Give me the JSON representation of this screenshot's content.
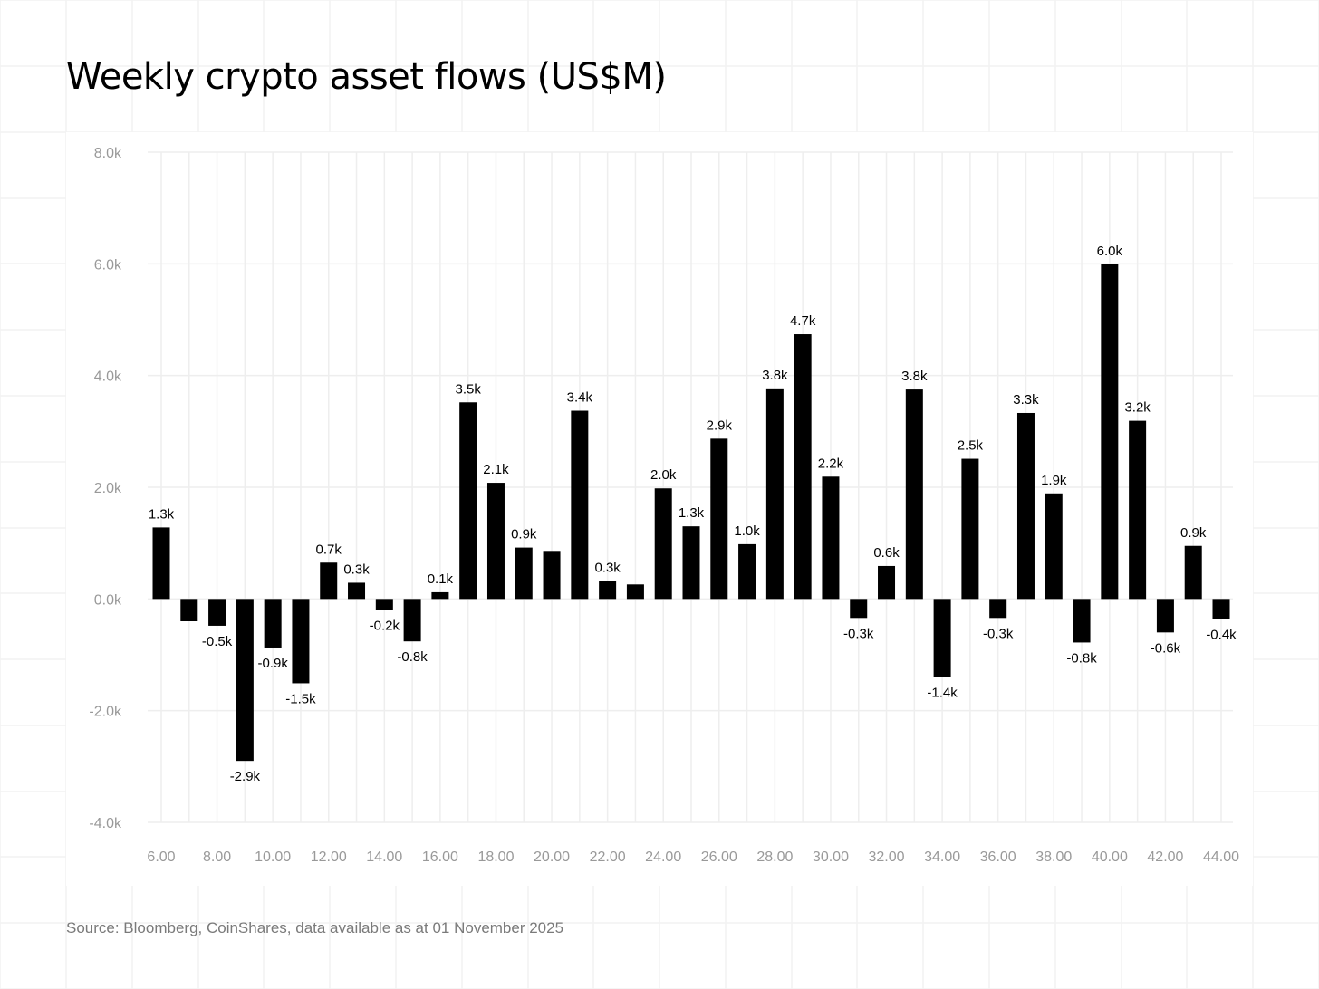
{
  "title": "Weekly crypto asset flows (US$M)",
  "source": "Source: Bloomberg, CoinShares, data available as at 01 November 2025",
  "colors": {
    "bar": "#000000",
    "grid": "#eeeeee",
    "axis_text": "#999999",
    "label_text": "#000000",
    "background_grid": "#f2f2f2"
  },
  "chart_data": {
    "type": "bar",
    "title": "Weekly crypto asset flows (US$M)",
    "xlabel": "",
    "ylabel": "",
    "ylim": [
      -4000,
      8000
    ],
    "yticks": [
      8000,
      6000,
      4000,
      2000,
      0,
      -2000,
      -4000
    ],
    "ytick_labels": [
      "8.0k",
      "6.0k",
      "4.0k",
      "2.0k",
      "0.0k",
      "-2.0k",
      "-4.0k"
    ],
    "grid": true,
    "legend": "none",
    "x_ticks": [
      {
        "at": 6,
        "label": "6.00"
      },
      {
        "at": 8,
        "label": "8.00"
      },
      {
        "at": 10,
        "label": "10.00"
      },
      {
        "at": 12,
        "label": "12.00"
      },
      {
        "at": 14,
        "label": "14.00"
      },
      {
        "at": 16,
        "label": "16.00"
      },
      {
        "at": 18,
        "label": "18.00"
      },
      {
        "at": 20,
        "label": "20.00"
      },
      {
        "at": 22,
        "label": "22.00"
      },
      {
        "at": 24,
        "label": "24.00"
      },
      {
        "at": 26,
        "label": "26.00"
      },
      {
        "at": 28,
        "label": "28.00"
      },
      {
        "at": 30,
        "label": "30.00"
      },
      {
        "at": 32,
        "label": "32.00"
      },
      {
        "at": 34,
        "label": "34.00"
      },
      {
        "at": 36,
        "label": "36.00"
      },
      {
        "at": 38,
        "label": "38.00"
      },
      {
        "at": 40,
        "label": "40.00"
      },
      {
        "at": 42,
        "label": "42.00"
      },
      {
        "at": 44,
        "label": "44.00"
      }
    ],
    "bars": [
      {
        "x": 6,
        "value": 1280,
        "label": "1.3k"
      },
      {
        "x": 7,
        "value": -400,
        "label": ""
      },
      {
        "x": 8,
        "value": -480,
        "label": "-0.5k"
      },
      {
        "x": 9,
        "value": -2900,
        "label": "-2.9k"
      },
      {
        "x": 10,
        "value": -870,
        "label": "-0.9k"
      },
      {
        "x": 11,
        "value": -1510,
        "label": "-1.5k"
      },
      {
        "x": 12,
        "value": 650,
        "label": "0.7k"
      },
      {
        "x": 13,
        "value": 290,
        "label": "0.3k"
      },
      {
        "x": 14,
        "value": -200,
        "label": "-0.2k"
      },
      {
        "x": 15,
        "value": -760,
        "label": "-0.8k"
      },
      {
        "x": 16,
        "value": 120,
        "label": "0.1k"
      },
      {
        "x": 17,
        "value": 3520,
        "label": "3.5k"
      },
      {
        "x": 18,
        "value": 2080,
        "label": "2.1k"
      },
      {
        "x": 19,
        "value": 920,
        "label": "0.9k"
      },
      {
        "x": 20,
        "value": 860,
        "label": ""
      },
      {
        "x": 21,
        "value": 3370,
        "label": "3.4k"
      },
      {
        "x": 22,
        "value": 320,
        "label": "0.3k"
      },
      {
        "x": 23,
        "value": 260,
        "label": ""
      },
      {
        "x": 24,
        "value": 1980,
        "label": "2.0k"
      },
      {
        "x": 25,
        "value": 1300,
        "label": "1.3k"
      },
      {
        "x": 26,
        "value": 2870,
        "label": "2.9k"
      },
      {
        "x": 27,
        "value": 980,
        "label": "1.0k"
      },
      {
        "x": 28,
        "value": 3770,
        "label": "3.8k"
      },
      {
        "x": 29,
        "value": 4740,
        "label": "4.7k"
      },
      {
        "x": 30,
        "value": 2190,
        "label": "2.2k"
      },
      {
        "x": 31,
        "value": -340,
        "label": "-0.3k"
      },
      {
        "x": 32,
        "value": 590,
        "label": "0.6k"
      },
      {
        "x": 33,
        "value": 3750,
        "label": "3.8k"
      },
      {
        "x": 34,
        "value": -1400,
        "label": "-1.4k"
      },
      {
        "x": 35,
        "value": 2510,
        "label": "2.5k"
      },
      {
        "x": 36,
        "value": -340,
        "label": "-0.3k"
      },
      {
        "x": 37,
        "value": 3330,
        "label": "3.3k"
      },
      {
        "x": 38,
        "value": 1890,
        "label": "1.9k"
      },
      {
        "x": 39,
        "value": -780,
        "label": "-0.8k"
      },
      {
        "x": 40,
        "value": 5990,
        "label": "6.0k"
      },
      {
        "x": 41,
        "value": 3190,
        "label": "3.2k"
      },
      {
        "x": 42,
        "value": -600,
        "label": "-0.6k"
      },
      {
        "x": 43,
        "value": 950,
        "label": "0.9k"
      },
      {
        "x": 44,
        "value": -360,
        "label": "-0.4k"
      }
    ]
  }
}
